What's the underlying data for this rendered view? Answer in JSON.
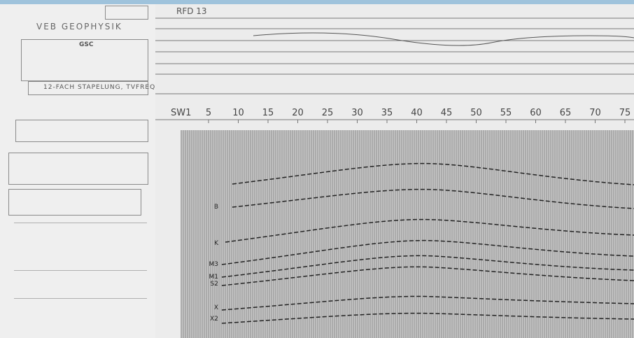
{
  "title_block": {
    "company": "VEB GEOPHYSIK",
    "code": "GSC",
    "processing": "12-FACH STAPELUNG, TVFREQ"
  },
  "profile": {
    "line": "RFD 13",
    "start": "SW1",
    "stations": [
      5,
      10,
      15,
      20,
      25,
      30,
      35,
      40,
      45,
      50,
      55,
      60,
      65,
      70,
      75
    ]
  },
  "horizons": [
    "B",
    "K",
    "M3",
    "M1",
    "S2",
    "X",
    "X2"
  ]
}
